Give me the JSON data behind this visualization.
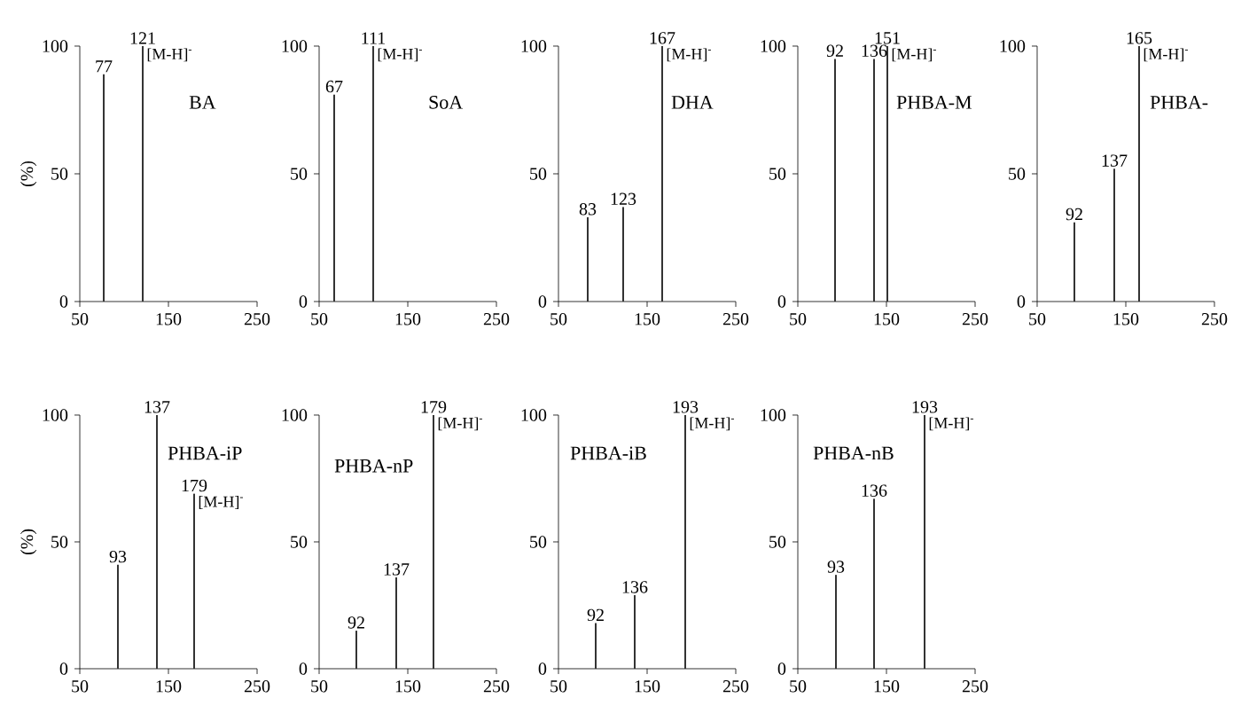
{
  "chart_data": [
    {
      "type": "bar",
      "title": "BA",
      "ylabel": "(%)",
      "x": [
        77,
        121
      ],
      "values": [
        89,
        100
      ],
      "color": "#333333",
      "xlim": [
        50,
        250
      ],
      "xticks": [
        50,
        150,
        250
      ],
      "ylim": [
        0,
        100
      ],
      "yticks": [
        0,
        50,
        100
      ],
      "annotations": [
        {
          "text": "77",
          "x": 77,
          "y": 89
        },
        {
          "text": "121",
          "x": 121,
          "y": 100
        },
        "[M-H]$^{-}$"
      ]
    },
    {
      "type": "bar",
      "title": "SoA",
      "x": [
        67,
        111
      ],
      "values": [
        81,
        100
      ],
      "color": "#333333",
      "xlim": [
        50,
        250
      ],
      "xticks": [
        50,
        150,
        250
      ],
      "ylim": [
        0,
        100
      ],
      "yticks": [
        0,
        50,
        100
      ],
      "annotations": [
        {
          "text": "67",
          "x": 67,
          "y": 81
        },
        {
          "text": "111",
          "x": 111,
          "y": 100
        },
        "[M-H]$^{-}$"
      ]
    },
    {
      "type": "bar",
      "title": "DHA",
      "x": [
        83,
        123,
        167
      ],
      "values": [
        33,
        37,
        100
      ],
      "color": "#333333",
      "xlim": [
        50,
        250
      ],
      "xticks": [
        50,
        150,
        250
      ],
      "ylim": [
        0,
        100
      ],
      "yticks": [
        0,
        50,
        100
      ],
      "annotations": [
        {
          "text": "83",
          "x": 83,
          "y": 33
        },
        {
          "text": "123",
          "x": 123,
          "y": 37
        },
        {
          "text": "167",
          "x": 167,
          "y": 100
        },
        "[M-H]$^{-}$"
      ]
    },
    {
      "type": "bar",
      "title": "PHBA-M",
      "x": [
        92,
        136,
        151
      ],
      "values": [
        95,
        95,
        100
      ],
      "color": "#333333",
      "xlim": [
        50,
        250
      ],
      "xticks": [
        50,
        150,
        250
      ],
      "ylim": [
        0,
        100
      ],
      "yticks": [
        0,
        50,
        100
      ],
      "annotations": [
        {
          "text": "92",
          "x": 92,
          "y": 95
        },
        {
          "text": "136",
          "x": 136,
          "y": 95
        },
        {
          "text": "151",
          "x": 151,
          "y": 100
        },
        "[M-H]$^{-}$"
      ]
    },
    {
      "type": "bar",
      "title": "PHBA-",
      "x": [
        92,
        137,
        165
      ],
      "values": [
        31,
        52,
        100
      ],
      "color": "#333333",
      "xlim": [
        50,
        250
      ],
      "xticks": [
        50,
        150,
        250
      ],
      "ylim": [
        0,
        100
      ],
      "yticks": [
        0,
        50,
        100
      ],
      "annotations": [
        {
          "text": "92",
          "x": 92,
          "y": 31
        },
        {
          "text": "137",
          "x": 137,
          "y": 52
        },
        {
          "text": "165",
          "x": 165,
          "y": 100
        },
        "[M-H]$^{-}$"
      ]
    },
    {
      "type": "bar",
      "title": "PHBA-iP",
      "ylabel": "(%)",
      "x": [
        93,
        137,
        179
      ],
      "values": [
        41,
        100,
        69
      ],
      "color": "#333333",
      "xlim": [
        50,
        250
      ],
      "xticks": [
        50,
        150,
        250
      ],
      "ylim": [
        0,
        100
      ],
      "yticks": [
        0,
        50,
        100
      ],
      "annotations": [
        {
          "text": "93",
          "x": 93,
          "y": 41
        },
        {
          "text": "137",
          "x": 137,
          "y": 100
        },
        {
          "text": "179",
          "x": 179,
          "y": 69
        },
        "[M-H]$^{-}$"
      ]
    },
    {
      "type": "bar",
      "title": "PHBA-nP",
      "x": [
        92,
        137,
        179
      ],
      "values": [
        15,
        36,
        100
      ],
      "color": "#333333",
      "xlim": [
        50,
        250
      ],
      "xticks": [
        50,
        150,
        250
      ],
      "ylim": [
        0,
        100
      ],
      "yticks": [
        0,
        50,
        100
      ],
      "annotations": [
        {
          "text": "92",
          "x": 92,
          "y": 15
        },
        {
          "text": "137",
          "x": 137,
          "y": 36
        },
        {
          "text": "179",
          "x": 179,
          "y": 100
        },
        "[M-H]$^{-}$"
      ]
    },
    {
      "type": "bar",
      "title": "PHBA-iB",
      "x": [
        92,
        136,
        193
      ],
      "values": [
        18,
        29,
        100
      ],
      "color": "#333333",
      "xlim": [
        50,
        250
      ],
      "xticks": [
        50,
        150,
        250
      ],
      "ylim": [
        0,
        100
      ],
      "yticks": [
        0,
        50,
        100
      ],
      "annotations": [
        {
          "text": "92",
          "x": 92,
          "y": 18
        },
        {
          "text": "136",
          "x": 136,
          "y": 29
        },
        {
          "text": "193",
          "x": 193,
          "y": 100
        },
        "[M-H]$^{-}$"
      ]
    },
    {
      "type": "bar",
      "title": "PHBA-nB",
      "x": [
        93,
        136,
        193
      ],
      "values": [
        37,
        67,
        100
      ],
      "color": "#333333",
      "xlim": [
        50,
        250
      ],
      "xticks": [
        50,
        150,
        250
      ],
      "ylim": [
        0,
        100
      ],
      "yticks": [
        0,
        50,
        100
      ],
      "annotations": [
        {
          "text": "93",
          "x": 93,
          "y": 37
        },
        {
          "text": "136",
          "x": 136,
          "y": 67
        },
        {
          "text": "193",
          "x": 193,
          "y": 100
        },
        "[M-H]$^{-}$"
      ]
    }
  ]
}
